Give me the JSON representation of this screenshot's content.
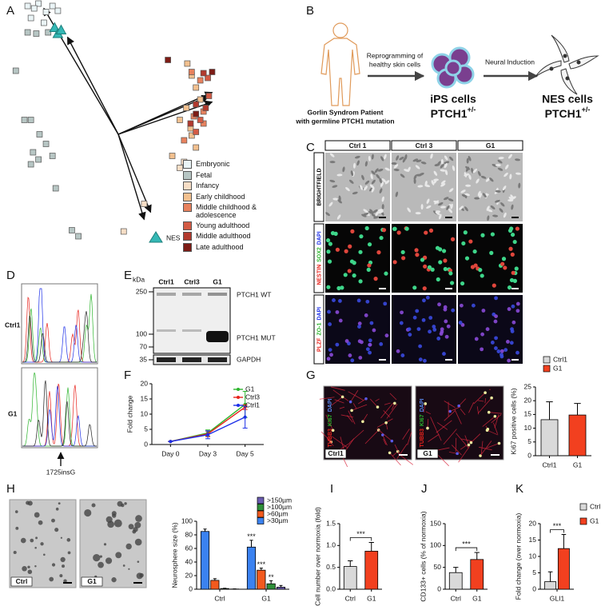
{
  "chart_data": [
    {
      "type": "scatter",
      "label": "A",
      "xlim": [
        -1,
        1
      ],
      "ylim": [
        -1,
        1.1
      ],
      "series": [
        {
          "name": "Embryonic",
          "color": "#eaf4f6",
          "marker": "square",
          "x": [
            -0.84,
            -0.74,
            -0.67,
            -0.56,
            -0.61,
            -0.81,
            -0.69,
            -0.78
          ],
          "y": [
            1.07,
            1.09,
            1.02,
            1.03,
            1.07,
            0.97,
            0.93,
            1.05
          ]
        },
        {
          "name": "Fetal",
          "color": "#b7c6c4",
          "marker": "square",
          "x": [
            -0.95,
            -0.76,
            -0.65,
            -0.84,
            -0.81,
            -0.73,
            -0.79,
            -0.74,
            -0.61,
            -0.81,
            -0.67,
            -0.58,
            -0.43,
            -0.37,
            -0.87
          ],
          "y": [
            0.53,
            0.84,
            0.85,
            0.85,
            0.12,
            0,
            -0.15,
            -0.21,
            -0.18,
            -0.25,
            -0.08,
            -0.45,
            -0.8,
            -0.85,
            0.12
          ]
        },
        {
          "name": "Infancy",
          "color": "#f7dec6",
          "marker": "square",
          "x": [
            0.05,
            0.24,
            0.57,
            0.61
          ],
          "y": [
            -0.81,
            -0.58,
            -0.28,
            -0.23
          ]
        },
        {
          "name": "Early childhood",
          "color": "#f2c08f",
          "marker": "square",
          "x": [
            0.64,
            0.68,
            0.72,
            0.76,
            0.63,
            0.68,
            0.72,
            0.5,
            0.67,
            0.57
          ],
          "y": [
            0.59,
            0.49,
            0.39,
            0.29,
            0.22,
            -0.01,
            -0.11,
            -0.18,
            0.05,
            0.12
          ]
        },
        {
          "name": "Middle childhood & adolescence",
          "color": "#e8825e",
          "marker": "square",
          "x": [
            0.68,
            0.76,
            0.79,
            0.7,
            0.61,
            0.79
          ],
          "y": [
            0.52,
            0.45,
            0.19,
            0.15,
            -0.05,
            0.09
          ]
        },
        {
          "name": "Young adulthood",
          "color": "#d35b45",
          "marker": "square",
          "x": [
            0.83,
            0.76,
            0.72,
            0.84
          ],
          "y": [
            0.47,
            0.12,
            0.02,
            0.32
          ]
        },
        {
          "name": "Middle adulthood",
          "color": "#b23a2e",
          "marker": "square",
          "x": [
            0.79,
            0.72,
            0.67,
            0.81
          ],
          "y": [
            0.51,
            0.25,
            0.09,
            0.22
          ]
        },
        {
          "name": "Late adulthood",
          "color": "#7d1c16",
          "marker": "square",
          "x": [
            0.46,
            0.87,
            0.72
          ],
          "y": [
            0.62,
            0.52,
            0.17
          ]
        },
        {
          "name": "NES",
          "color": "#35b8b5",
          "marker": "triangle",
          "x": [
            -0.59,
            -0.56,
            -0.53
          ],
          "y": [
            0.89,
            0.84,
            0.87
          ]
        }
      ],
      "arrows_x": [
        -0.69,
        -0.47,
        0.87,
        0.87,
        0.84,
        0.3,
        0.24
      ],
      "arrows_y": [
        1.05,
        0.81,
        0.35,
        0.27,
        0.32,
        -0.65,
        -0.71
      ]
    },
    {
      "type": "line",
      "label": "F",
      "categories": [
        "Day 0",
        "Day 3",
        "Day 5"
      ],
      "ylabel": "Fold change",
      "ylim": [
        0,
        20
      ],
      "yticks": [
        0,
        5,
        10,
        15,
        20
      ],
      "legend": "upper right",
      "series": [
        {
          "name": "G1",
          "color": "#2db52d",
          "values": [
            1,
            3.8,
            13.2
          ],
          "errors": [
            0,
            1,
            4.3
          ]
        },
        {
          "name": "Ctrl3",
          "color": "#e8231c",
          "values": [
            1,
            3.5,
            12.3
          ],
          "errors": [
            0,
            0.9,
            0.8
          ]
        },
        {
          "name": "Ctrl1",
          "color": "#1c2fe8",
          "values": [
            1,
            3.2,
            9
          ],
          "errors": [
            0,
            1.3,
            3.6
          ]
        }
      ]
    },
    {
      "type": "bar",
      "label": "G",
      "image_stain": [
        "TUBB3",
        "KI67",
        "DAPI"
      ],
      "image_labels": [
        "Ctrl1",
        "G1"
      ],
      "categories": [
        "Ctrl1",
        "G1"
      ],
      "values": [
        13.1,
        14.8
      ],
      "errors": [
        6.5,
        4.2
      ],
      "colors": [
        "#d9d9d9",
        "#f2401f"
      ],
      "ylabel": "Ki67 positive cells (%)",
      "ylim": [
        0,
        25
      ],
      "yticks": [
        0,
        5,
        10,
        15,
        20,
        25
      ],
      "legend": "above"
    },
    {
      "type": "bar",
      "label": "H",
      "image_labels": [
        "Ctrl",
        "G1"
      ],
      "categories": [
        "Ctrl",
        "G1"
      ],
      "ylabel": "Neurosphere size (%)",
      "ylim": [
        0,
        100
      ],
      "yticks": [
        0,
        20,
        40,
        60,
        80,
        100
      ],
      "legend": "upper right",
      "series": [
        {
          "name": ">30µm",
          "color": "#3b82f0",
          "values": [
            85,
            62
          ],
          "errors": [
            3.5,
            10
          ],
          "significance": [
            null,
            "***"
          ]
        },
        {
          "name": ">60µm",
          "color": "#f25a1e",
          "values": [
            13,
            28
          ],
          "errors": [
            2.5,
            3
          ],
          "significance": [
            null,
            "***"
          ]
        },
        {
          "name": ">100µm",
          "color": "#2f8f3a",
          "values": [
            1,
            8
          ],
          "errors": [
            0.4,
            4.5
          ],
          "significance": [
            null,
            "**"
          ]
        },
        {
          "name": ">150µm",
          "color": "#6a5bb0",
          "values": [
            0.3,
            3
          ],
          "errors": [
            0.2,
            2.5
          ],
          "significance": [
            null,
            null
          ]
        }
      ]
    },
    {
      "type": "bar",
      "label": "I",
      "categories": [
        "Ctrl",
        "G1"
      ],
      "values": [
        0.52,
        0.87
      ],
      "errors": [
        0.13,
        0.2
      ],
      "colors": [
        "#d9d9d9",
        "#f2401f"
      ],
      "ylabel": "Cell number over normoxia (fold)",
      "ylim": [
        0,
        1.5
      ],
      "yticks": [
        {
          "value": 0,
          "label": "0.0"
        },
        0.5,
        {
          "value": 1,
          "label": "1.0"
        },
        1.5
      ],
      "significance": "***"
    },
    {
      "type": "bar",
      "label": "J",
      "categories": [
        "Ctrl",
        "G1"
      ],
      "values": [
        38,
        68
      ],
      "errors": [
        12,
        16
      ],
      "colors": [
        "#d9d9d9",
        "#f2401f"
      ],
      "ylabel": "CD133+ cells (% of normoxia)",
      "ylim": [
        0,
        150
      ],
      "yticks": [
        0,
        50,
        100,
        150
      ],
      "significance": "***"
    },
    {
      "type": "bar",
      "label": "K",
      "categories": [
        "GLI1"
      ],
      "series": [
        {
          "name": "Ctrl",
          "color": "#d9d9d9",
          "values": [
            2.3
          ],
          "errors": [
            3
          ]
        },
        {
          "name": "G1",
          "color": "#f2401f",
          "values": [
            12.4
          ],
          "errors": [
            4.3
          ]
        }
      ],
      "ylabel": "Fold change (over normoxia)",
      "ylim": [
        0,
        20
      ],
      "yticks": [
        0,
        5,
        10,
        15,
        20
      ],
      "significance": "***",
      "legend": "right"
    }
  ],
  "diagram": {
    "label": "B",
    "patient": [
      "Gorlin Syndrom Patient",
      "with germline PTCH1 mutation"
    ],
    "step1": [
      "Reprogramming of",
      "healthy skin cells"
    ],
    "step2": "Neural Induction",
    "ips": {
      "name": "iPS cells",
      "gene": "PTCH1",
      "genotype": "+/-"
    },
    "nes": {
      "name": "NES cells",
      "gene": "PTCH1",
      "genotype": "+/-"
    }
  },
  "imaging": {
    "label": "C",
    "columns": [
      "Ctrl 1",
      "Ctrl 3",
      "G1"
    ],
    "rows": [
      [
        {
          "text": "BRIGHTFIELD",
          "color": "#000000"
        }
      ],
      [
        {
          "text": "NESTIN",
          "color": "#e8231c"
        },
        {
          "text": "SOX2",
          "color": "#2db52d"
        },
        {
          "text": "DAPI",
          "color": "#1c2fe8"
        }
      ],
      [
        {
          "text": "PLZF",
          "color": "#e8231c"
        },
        {
          "text": "ZO-1",
          "color": "#2db52d"
        },
        {
          "text": "DAPI",
          "color": "#1c2fe8"
        }
      ]
    ]
  },
  "sequencing": {
    "label": "D",
    "samples": [
      "Ctrl1",
      "G1"
    ],
    "mutation": "1725insG"
  },
  "blot": {
    "label": "E",
    "unit": "kDa",
    "markers": [
      250,
      100,
      70,
      35
    ],
    "lanes": [
      "Ctrl1",
      "Ctrl3",
      "G1"
    ],
    "bands": [
      "PTCH1 WT",
      "PTCH1 MUT",
      "GAPDH"
    ]
  }
}
